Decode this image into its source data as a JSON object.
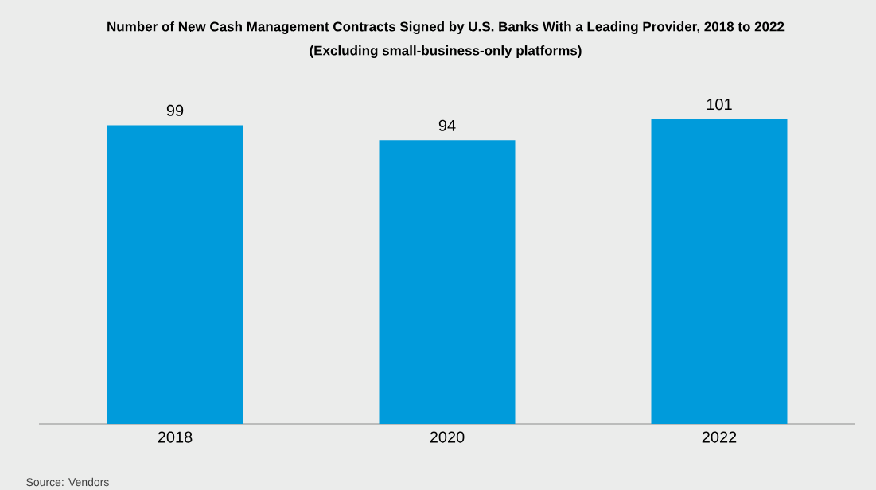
{
  "chart_data": {
    "type": "bar",
    "title": "Number of New Cash Management Contracts Signed by U.S. Banks With a Leading Provider, 2018 to 2022",
    "subtitle": "(Excluding small-business-only platforms)",
    "categories": [
      "2018",
      "2020",
      "2022"
    ],
    "values": [
      99,
      94,
      101
    ],
    "color": "#009bdb",
    "data_labels": true,
    "annotations": [
      "Source: Vendors"
    ]
  }
}
